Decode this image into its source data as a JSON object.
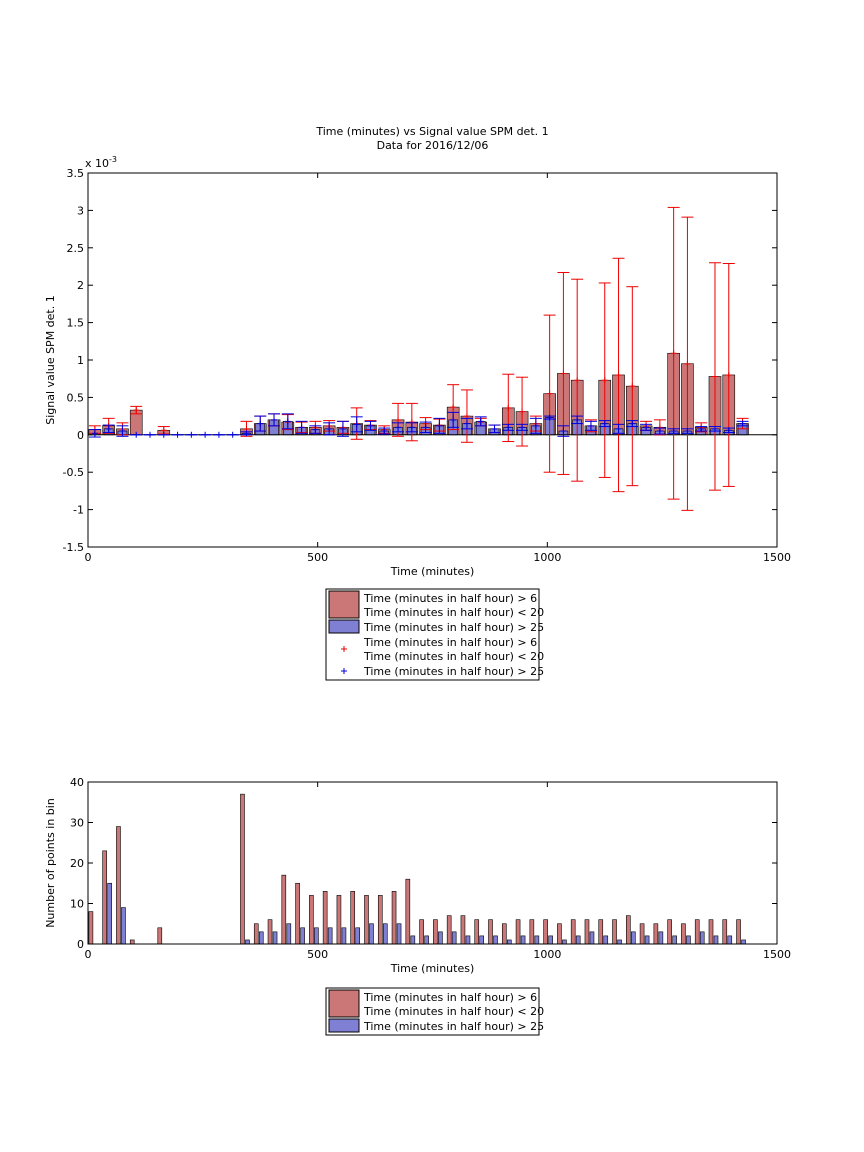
{
  "chart_data": [
    {
      "type": "bar",
      "title": "Time (minutes) vs Signal value SPM det. 1",
      "subtitle": "Data for 2016/12/06",
      "x_label": "Time (minutes)",
      "y_label": "Signal value SPM det. 1",
      "multiplier": {
        "base": "x 10",
        "exponent": "-3"
      },
      "x": [
        15,
        45,
        75,
        105,
        135,
        165,
        195,
        225,
        255,
        285,
        315,
        345,
        375,
        405,
        435,
        465,
        495,
        525,
        555,
        585,
        615,
        645,
        675,
        705,
        735,
        765,
        795,
        825,
        855,
        885,
        915,
        945,
        975,
        1005,
        1035,
        1065,
        1095,
        1125,
        1155,
        1185,
        1215,
        1245,
        1275,
        1305,
        1335,
        1365,
        1395,
        1425
      ],
      "xlim": [
        0,
        1500
      ],
      "xticks": [
        0,
        500,
        1000,
        1500
      ],
      "ylim": [
        -1.5,
        3.5
      ],
      "yticks": [
        -1.5,
        -1,
        -0.5,
        0,
        0.5,
        1,
        1.5,
        2,
        2.5,
        3,
        3.5
      ],
      "series": [
        {
          "name": [
            "Time (minutes in half hour) > 6",
            "Time (minutes in half hour) < 20"
          ],
          "color": "#cc7777",
          "error_color": "#ee0000",
          "values": [
            0.07,
            0.12,
            0.08,
            0.33,
            null,
            0.06,
            null,
            null,
            null,
            null,
            null,
            0.08,
            0.15,
            0.2,
            0.17,
            0.1,
            0.1,
            0.12,
            0.1,
            0.15,
            0.13,
            0.07,
            0.2,
            0.17,
            0.15,
            0.13,
            0.37,
            0.25,
            0.17,
            0.08,
            0.36,
            0.31,
            0.15,
            0.55,
            0.82,
            0.73,
            0.12,
            0.73,
            0.8,
            0.65,
            0.12,
            0.1,
            1.09,
            0.95,
            0.1,
            0.78,
            0.8,
            0.15
          ],
          "errors": [
            0.05,
            0.1,
            0.08,
            0.05,
            null,
            0.05,
            null,
            null,
            null,
            null,
            null,
            0.1,
            0.1,
            0.08,
            0.1,
            0.07,
            0.08,
            0.07,
            0.08,
            0.21,
            0.06,
            0.05,
            0.22,
            0.25,
            0.08,
            0.08,
            0.3,
            0.35,
            0.05,
            0.05,
            0.45,
            0.46,
            0.1,
            1.05,
            1.35,
            1.35,
            0.08,
            1.3,
            1.56,
            1.33,
            0.06,
            0.1,
            1.95,
            1.96,
            0.06,
            1.52,
            1.49,
            0.07
          ]
        },
        {
          "name": [
            "Time (minutes in half hour) > 25"
          ],
          "color": "#7f7fd4",
          "error_color": "#0000dd",
          "values": [
            0.02,
            0.08,
            0.05,
            0,
            0,
            0,
            0,
            0,
            0,
            0,
            0,
            0.02,
            0.15,
            0.2,
            0.18,
            0.1,
            0.07,
            0.08,
            0.08,
            0.14,
            0.12,
            0.05,
            0.1,
            0.1,
            0.1,
            0.12,
            0.2,
            0.15,
            0.18,
            0.08,
            0.1,
            0.1,
            0.12,
            0.23,
            0.05,
            0.2,
            0.12,
            0.15,
            0.08,
            0.15,
            0.1,
            0.05,
            0.05,
            0.05,
            0.08,
            0.08,
            0.06,
            0.15
          ],
          "errors": [
            0.05,
            0.05,
            0.07,
            0,
            0,
            0,
            0,
            0,
            0,
            0,
            0,
            0.02,
            0.1,
            0.08,
            0.1,
            0.08,
            0.05,
            0.08,
            0.1,
            0.1,
            0.06,
            0.04,
            0.06,
            0.06,
            0.07,
            0.1,
            0.1,
            0.07,
            0.06,
            0.05,
            0.04,
            0.04,
            0.1,
            0.02,
            0.07,
            0.05,
            0.06,
            0.04,
            0.06,
            0.04,
            0.04,
            0.04,
            0.03,
            0.03,
            0.03,
            0.03,
            0.03,
            0.03
          ]
        }
      ]
    },
    {
      "type": "bar",
      "x_label": "Time (minutes)",
      "y_label": "Number of points in bin",
      "x": [
        15,
        45,
        75,
        105,
        135,
        165,
        195,
        225,
        255,
        285,
        315,
        345,
        375,
        405,
        435,
        465,
        495,
        525,
        555,
        585,
        615,
        645,
        675,
        705,
        735,
        765,
        795,
        825,
        855,
        885,
        915,
        945,
        975,
        1005,
        1035,
        1065,
        1095,
        1125,
        1155,
        1185,
        1215,
        1245,
        1275,
        1305,
        1335,
        1365,
        1395,
        1425
      ],
      "xlim": [
        0,
        1500
      ],
      "xticks": [
        0,
        500,
        1000,
        1500
      ],
      "ylim": [
        0,
        40
      ],
      "yticks": [
        0,
        10,
        20,
        30,
        40
      ],
      "series": [
        {
          "name": [
            "Time (minutes in half hour) > 6",
            "Time (minutes in half hour) < 20"
          ],
          "color": "#cc7777",
          "values": [
            8,
            23,
            29,
            1,
            0,
            4,
            0,
            0,
            0,
            0,
            0,
            37,
            5,
            6,
            17,
            15,
            12,
            13,
            12,
            13,
            12,
            12,
            13,
            16,
            6,
            6,
            7,
            7,
            6,
            6,
            5,
            6,
            6,
            6,
            5,
            6,
            6,
            6,
            6,
            7,
            5,
            5,
            6,
            5,
            6,
            6,
            6,
            6
          ]
        },
        {
          "name": [
            "Time (minutes in half hour) > 25"
          ],
          "color": "#7f7fd4",
          "values": [
            0,
            15,
            9,
            0,
            0,
            0,
            0,
            0,
            0,
            0,
            0,
            1,
            3,
            3,
            5,
            4,
            4,
            4,
            4,
            4,
            5,
            5,
            5,
            2,
            2,
            3,
            3,
            2,
            2,
            2,
            1,
            2,
            2,
            2,
            1,
            2,
            3,
            2,
            1,
            3,
            2,
            3,
            2,
            2,
            3,
            2,
            2,
            1
          ]
        }
      ]
    }
  ]
}
